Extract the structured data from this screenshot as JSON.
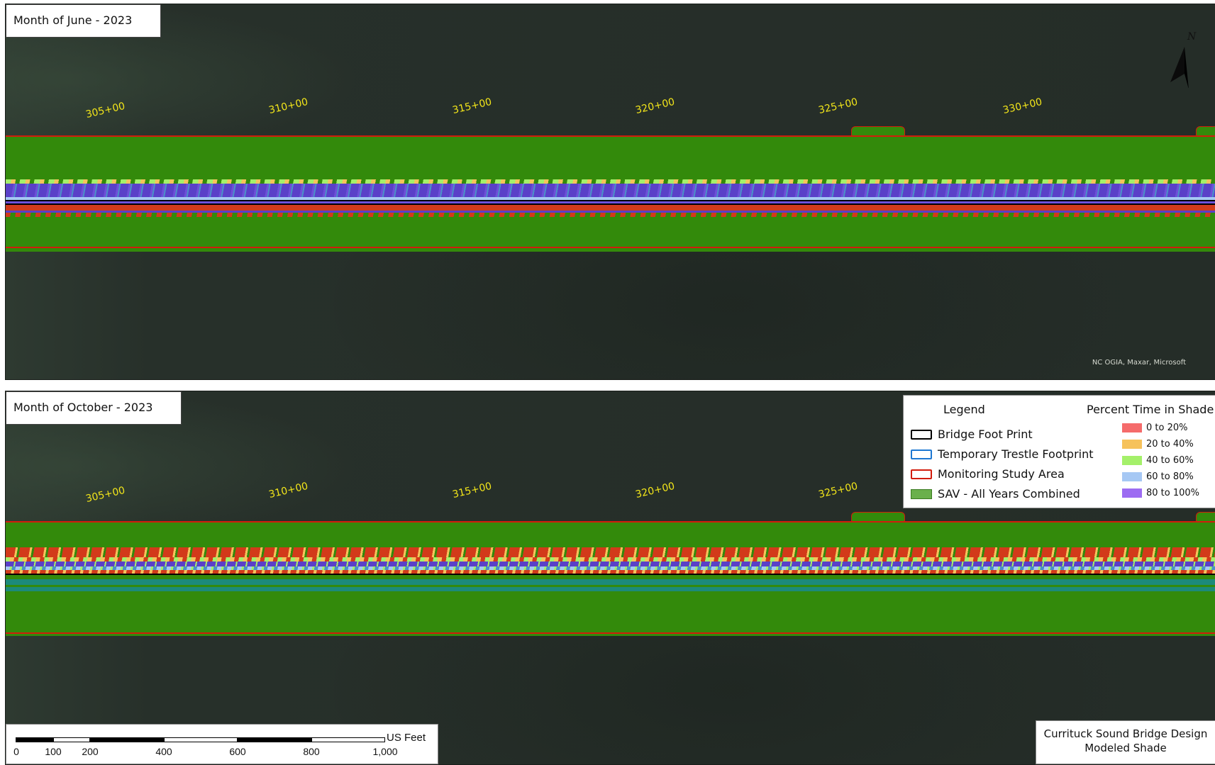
{
  "panels": [
    {
      "title": "Month of June - 2023",
      "stations": [
        "305+00",
        "310+00",
        "315+00",
        "320+00",
        "325+00",
        "330+00"
      ],
      "credits": "NC OGIA, Maxar, Microsoft"
    },
    {
      "title": "Month of October - 2023",
      "stations": [
        "305+00",
        "310+00",
        "315+00",
        "320+00",
        "325+00"
      ]
    }
  ],
  "north_arrow": {
    "label": "N"
  },
  "legend": {
    "title": "Legend",
    "items": [
      {
        "label": "Bridge Foot Print",
        "color": "#000000",
        "style": "outline"
      },
      {
        "label": "Temporary Trestle Footprint",
        "color": "#1e78d2",
        "style": "outline"
      },
      {
        "label": "Monitoring Study Area",
        "color": "#d21c0c",
        "style": "outline"
      },
      {
        "label": "SAV - All Years Combined",
        "color": "#6ab04c",
        "style": "fill"
      }
    ],
    "shade_title": "Percent Time in Shade",
    "shade_classes": [
      {
        "label": "0 to 20%",
        "color": "#f56b6b"
      },
      {
        "label": "20 to 40%",
        "color": "#f6c25b"
      },
      {
        "label": "40 to 60%",
        "color": "#a4f06a"
      },
      {
        "label": "60 to 80%",
        "color": "#a6c8f4"
      },
      {
        "label": "80 to 100%",
        "color": "#9d6cf2"
      }
    ]
  },
  "scale_bar": {
    "unit": "US Feet",
    "labels": [
      "0",
      "100",
      "200",
      "400",
      "600",
      "800",
      "1,000"
    ]
  },
  "project": {
    "line1": "Currituck Sound Bridge Design",
    "line2": "Modeled Shade"
  }
}
